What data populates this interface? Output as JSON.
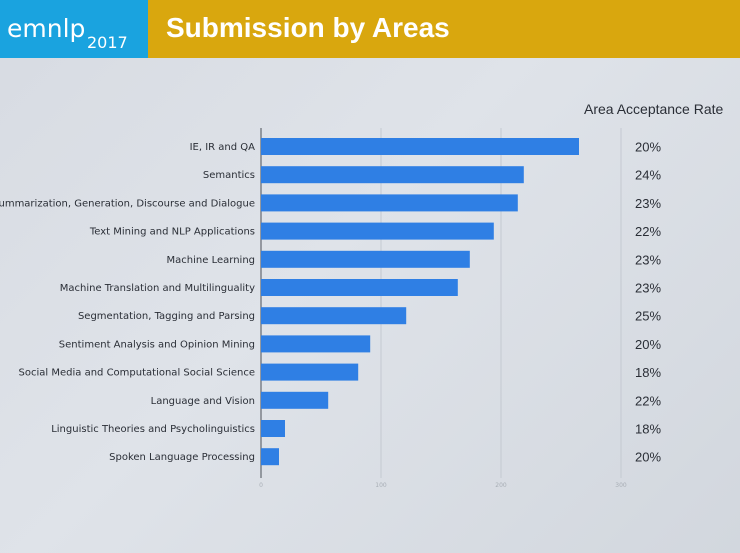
{
  "header": {
    "logo_text": "emnlp",
    "logo_year": "2017",
    "title": "Submission by Areas",
    "logo_color": "#1aa3df",
    "title_bar_color": "#d9a70e"
  },
  "chart_data": {
    "type": "bar",
    "orientation": "horizontal",
    "title": "Submission by Areas",
    "categories": [
      "IE, IR and QA",
      "Semantics",
      "Summarization, Generation, Discourse and Dialogue",
      "Text Mining and NLP Applications",
      "Machine Learning",
      "Machine Translation and Multilinguality",
      "Segmentation, Tagging and Parsing",
      "Sentiment Analysis and Opinion Mining",
      "Social Media and Computational Social Science",
      "Language and Vision",
      "Linguistic Theories and Psycholinguistics",
      "Spoken Language Processing"
    ],
    "values": [
      265,
      219,
      214,
      194,
      174,
      164,
      121,
      91,
      81,
      56,
      20,
      15
    ],
    "xlim": [
      0,
      300
    ],
    "grid": true,
    "bar_color": "#2f7fe4",
    "side_table": {
      "header": "Area Acceptance Rate",
      "rates": [
        "20%",
        "24%",
        "23%",
        "22%",
        "23%",
        "23%",
        "25%",
        "20%",
        "18%",
        "22%",
        "18%",
        "20%"
      ]
    }
  }
}
